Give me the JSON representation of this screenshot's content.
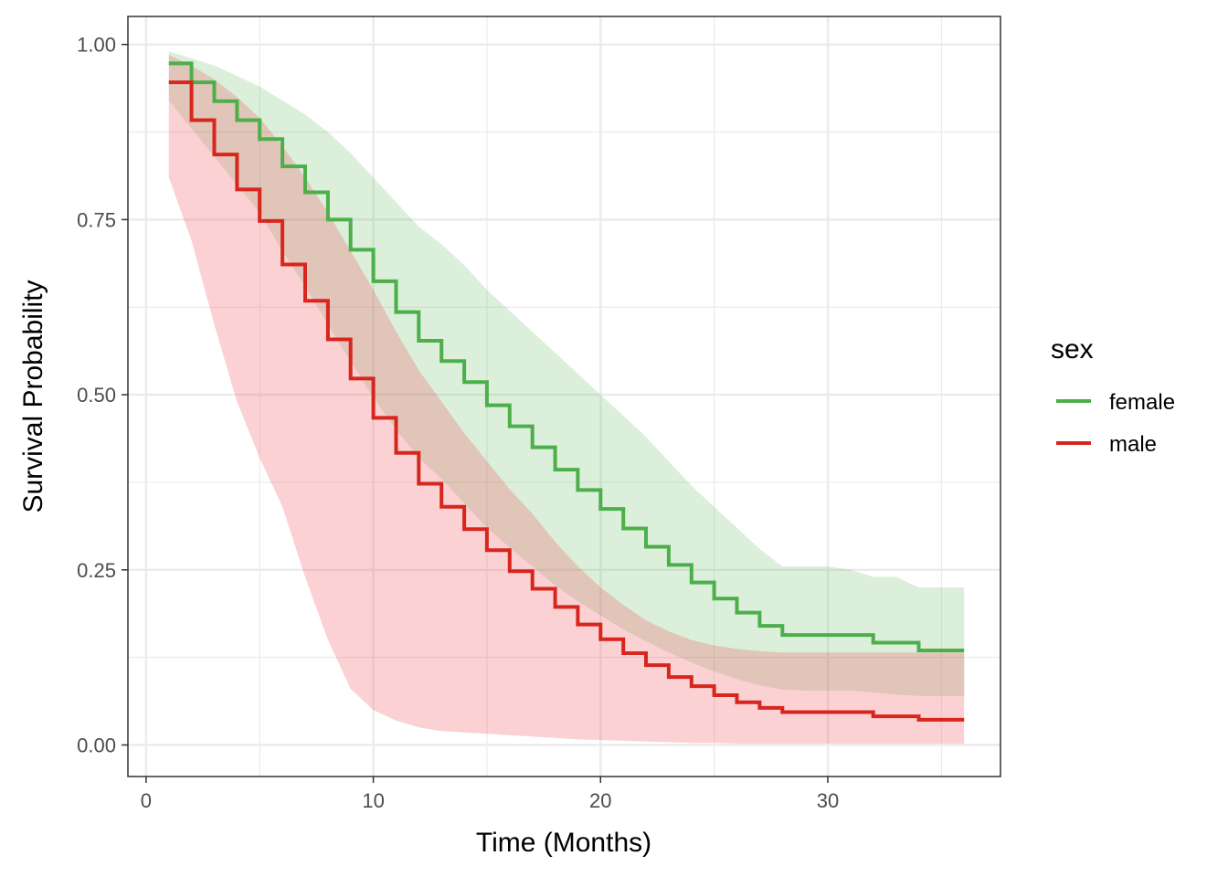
{
  "chart_data": {
    "type": "line",
    "subtype": "kaplan-meier step with confidence bands",
    "xlabel": "Time (Months)",
    "ylabel": "Survival Probability",
    "xlim": [
      -0.8,
      37.6
    ],
    "ylim": [
      -0.045,
      1.04
    ],
    "x_ticks": [
      0,
      10,
      20,
      30
    ],
    "x_tick_labels": [
      "0",
      "10",
      "20",
      "30"
    ],
    "y_ticks": [
      0,
      0.25,
      0.5,
      0.75,
      1.0
    ],
    "y_tick_labels": [
      "0.00",
      "0.25",
      "0.50",
      "0.75",
      "1.00"
    ],
    "grid": true,
    "legend": {
      "title": "sex",
      "position": "right"
    },
    "series": [
      {
        "name": "female",
        "color": "#4daf4a",
        "band_color": "rgba(77,175,74,0.20)",
        "times": [
          1,
          2,
          3,
          4,
          5,
          6,
          7,
          8,
          9,
          10,
          11,
          12,
          13,
          14,
          15,
          16,
          17,
          18,
          19,
          20,
          21,
          22,
          23,
          24,
          25,
          26,
          27,
          28,
          32,
          34,
          36
        ],
        "survival": [
          0.973,
          0.946,
          0.919,
          0.892,
          0.865,
          0.826,
          0.789,
          0.75,
          0.707,
          0.662,
          0.618,
          0.577,
          0.548,
          0.518,
          0.485,
          0.455,
          0.425,
          0.393,
          0.364,
          0.337,
          0.309,
          0.283,
          0.257,
          0.232,
          0.209,
          0.189,
          0.17,
          0.157,
          0.146,
          0.135,
          0.135
        ],
        "ci_x": [
          1,
          2,
          3,
          4,
          5,
          6,
          7,
          8,
          9,
          10,
          11,
          12,
          13,
          14,
          15,
          16,
          17,
          18,
          19,
          20,
          21,
          22,
          23,
          24,
          25,
          26,
          27,
          28,
          29,
          30,
          31,
          32,
          33,
          34,
          35,
          36
        ],
        "ci_upper": [
          0.99,
          0.98,
          0.97,
          0.955,
          0.94,
          0.92,
          0.9,
          0.875,
          0.845,
          0.81,
          0.775,
          0.74,
          0.715,
          0.685,
          0.65,
          0.62,
          0.59,
          0.56,
          0.53,
          0.5,
          0.47,
          0.44,
          0.405,
          0.37,
          0.34,
          0.31,
          0.28,
          0.255,
          0.255,
          0.255,
          0.25,
          0.24,
          0.24,
          0.225,
          0.225,
          0.225
        ],
        "ci_lower": [
          0.92,
          0.88,
          0.84,
          0.8,
          0.76,
          0.705,
          0.655,
          0.6,
          0.548,
          0.496,
          0.45,
          0.41,
          0.38,
          0.345,
          0.31,
          0.282,
          0.255,
          0.228,
          0.205,
          0.185,
          0.165,
          0.148,
          0.132,
          0.118,
          0.105,
          0.094,
          0.085,
          0.079,
          0.078,
          0.078,
          0.078,
          0.075,
          0.072,
          0.07,
          0.07,
          0.07
        ]
      },
      {
        "name": "male",
        "color": "#d7261e",
        "band_color": "rgba(238,70,80,0.25)",
        "times": [
          1,
          2,
          3,
          4,
          5,
          6,
          7,
          8,
          9,
          10,
          11,
          12,
          13,
          14,
          15,
          16,
          17,
          18,
          19,
          20,
          21,
          22,
          23,
          24,
          25,
          26,
          27,
          28,
          32,
          34,
          36
        ],
        "survival": [
          0.946,
          0.892,
          0.843,
          0.793,
          0.748,
          0.686,
          0.634,
          0.579,
          0.523,
          0.467,
          0.417,
          0.373,
          0.34,
          0.308,
          0.278,
          0.248,
          0.223,
          0.197,
          0.172,
          0.151,
          0.131,
          0.114,
          0.097,
          0.084,
          0.071,
          0.061,
          0.053,
          0.047,
          0.041,
          0.036,
          0.036
        ],
        "ci_x": [
          1,
          2,
          3,
          4,
          5,
          6,
          7,
          8,
          9,
          10,
          11,
          12,
          13,
          14,
          15,
          16,
          17,
          18,
          19,
          20,
          21,
          22,
          23,
          24,
          25,
          26,
          27,
          28,
          29,
          30,
          31,
          32,
          33,
          34,
          35,
          36
        ],
        "ci_upper": [
          0.985,
          0.97,
          0.95,
          0.925,
          0.895,
          0.855,
          0.81,
          0.76,
          0.705,
          0.65,
          0.59,
          0.535,
          0.49,
          0.445,
          0.405,
          0.365,
          0.33,
          0.29,
          0.255,
          0.225,
          0.2,
          0.178,
          0.162,
          0.15,
          0.142,
          0.137,
          0.134,
          0.132,
          0.132,
          0.132,
          0.132,
          0.132,
          0.132,
          0.132,
          0.132,
          0.132
        ],
        "ci_lower": [
          0.81,
          0.72,
          0.6,
          0.49,
          0.41,
          0.34,
          0.24,
          0.15,
          0.08,
          0.05,
          0.035,
          0.025,
          0.02,
          0.018,
          0.016,
          0.014,
          0.012,
          0.01,
          0.008,
          0.007,
          0.006,
          0.005,
          0.004,
          0.003,
          0.003,
          0.002,
          0.002,
          0.002,
          0.002,
          0.002,
          0.002,
          0.002,
          0.002,
          0.002,
          0.002,
          0.002
        ]
      }
    ]
  }
}
